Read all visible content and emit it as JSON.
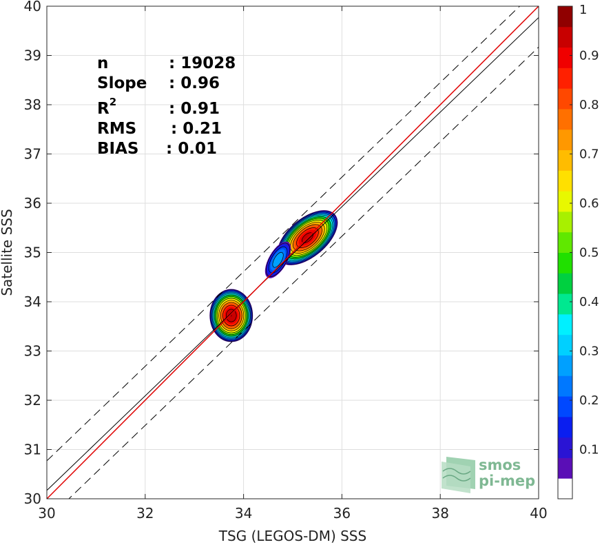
{
  "chart_data": {
    "type": "scatter",
    "xlabel": "TSG (LEGOS-DM) SSS",
    "ylabel": "Satellite SSS",
    "xlim": [
      30,
      40
    ],
    "ylim": [
      30,
      40
    ],
    "x_ticks": [
      "30",
      "32",
      "34",
      "36",
      "38",
      "40"
    ],
    "y_ticks": [
      "30",
      "31",
      "32",
      "33",
      "34",
      "35",
      "36",
      "37",
      "38",
      "39",
      "40"
    ],
    "grid": true,
    "stats": [
      {
        "label": "n",
        "value": ": 19028"
      },
      {
        "label": "Slope",
        "value": ": 0.96"
      },
      {
        "label": "R",
        "sup": "2",
        "value": ": 0.91"
      },
      {
        "label": "RMS",
        "value": ": 0.21"
      },
      {
        "label": "BIAS",
        "value": ": 0.01"
      }
    ],
    "lines": {
      "identity": {
        "x": [
          30,
          40
        ],
        "y": [
          30,
          40
        ],
        "color": "#e00000"
      },
      "fit": {
        "x": [
          30,
          40
        ],
        "y": [
          30.17,
          39.77
        ],
        "color": "#000000"
      },
      "upper_bound": {
        "x": [
          30,
          40
        ],
        "y": [
          30.77,
          40.37
        ],
        "color": "#000000",
        "dash": true
      },
      "lower_bound": {
        "x": [
          30,
          40
        ],
        "y": [
          29.57,
          39.17
        ],
        "color": "#000000",
        "dash": true
      }
    },
    "density_clusters": [
      {
        "x_center": 33.75,
        "y_center": 33.72,
        "x_radius": 0.45,
        "y_radius": 0.55,
        "rotation_deg": 0,
        "peak": 1.0
      },
      {
        "x_center": 35.3,
        "y_center": 35.3,
        "x_radius": 0.75,
        "y_radius": 0.4,
        "rotation_deg": -40,
        "peak": 0.98
      },
      {
        "x_center": 34.7,
        "y_center": 34.85,
        "x_radius": 0.45,
        "y_radius": 0.2,
        "rotation_deg": -60,
        "peak": 0.3
      }
    ],
    "colorbar": {
      "range": [
        0,
        1
      ],
      "ticks": [
        "0.1",
        "0.2",
        "0.3",
        "0.4",
        "0.5",
        "0.6",
        "0.7",
        "0.8",
        "0.9",
        "1"
      ],
      "colors": [
        "#ffffff",
        "#5a0eb6",
        "#2a14d4",
        "#0a1ef0",
        "#0048ff",
        "#0078ff",
        "#00a0ff",
        "#00d0ff",
        "#00f0ff",
        "#00e890",
        "#00d040",
        "#20e000",
        "#60e800",
        "#a8f000",
        "#e8f800",
        "#ffe000",
        "#ffbc00",
        "#ff9800",
        "#ff7000",
        "#ff4800",
        "#ff2000",
        "#f00000",
        "#c80000",
        "#900000"
      ]
    },
    "logo": {
      "line1": "smos",
      "line2": "pi-mep"
    }
  }
}
